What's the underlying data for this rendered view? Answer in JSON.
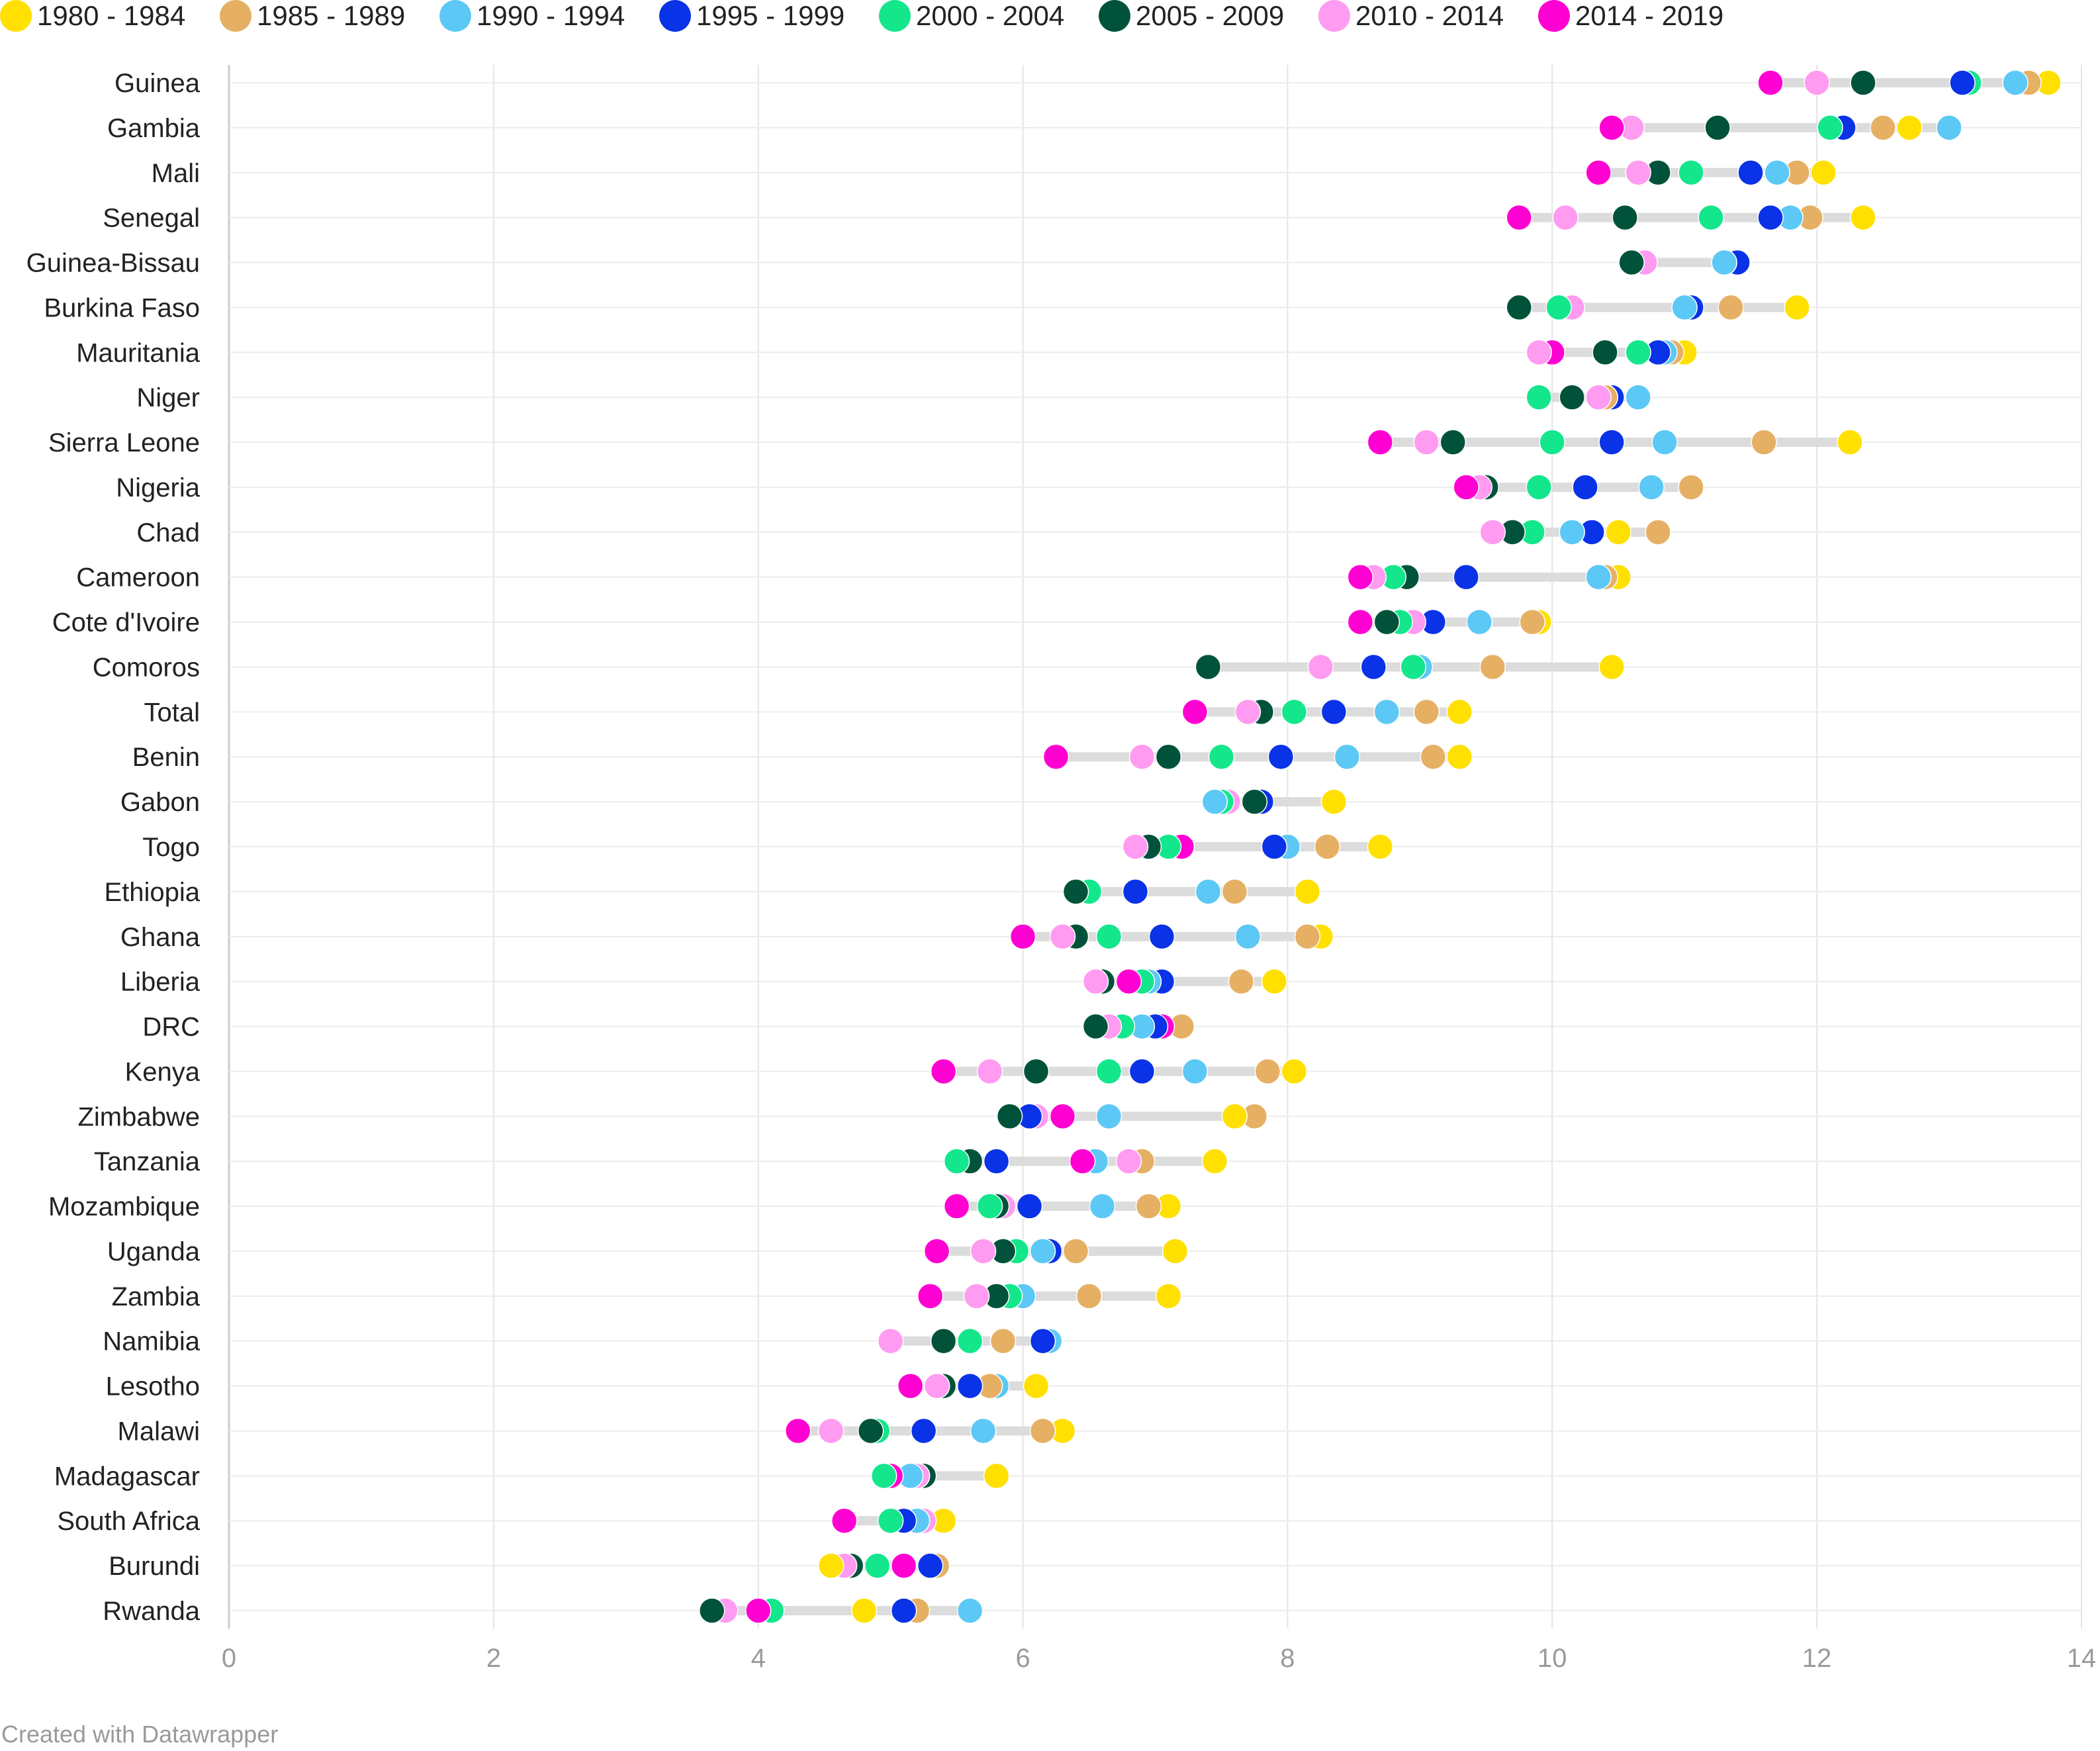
{
  "credit": "Created with Datawrapper",
  "chart_data": {
    "type": "scatter",
    "subtype": "dot-range",
    "title": "",
    "xlabel": "",
    "ylabel": "",
    "xlim": [
      0,
      14
    ],
    "xticks": [
      0,
      2,
      4,
      6,
      8,
      10,
      12,
      14
    ],
    "grid": true,
    "legend_position": "top-left",
    "series": [
      {
        "name": "1980 - 1984",
        "color": "#ffe000"
      },
      {
        "name": "1985 - 1989",
        "color": "#e6b064"
      },
      {
        "name": "1990 - 1994",
        "color": "#5cc8f5"
      },
      {
        "name": "1995 - 1999",
        "color": "#0a32e6"
      },
      {
        "name": "2000 - 2004",
        "color": "#14e68c"
      },
      {
        "name": "2005 - 2009",
        "color": "#00533a"
      },
      {
        "name": "2010 - 2014",
        "color": "#ff9bf0"
      },
      {
        "name": "2014 - 2019",
        "color": "#ff00d2"
      }
    ],
    "categories": [
      "Guinea",
      "Gambia",
      "Mali",
      "Senegal",
      "Guinea-Bissau",
      "Burkina Faso",
      "Mauritania",
      "Niger",
      "Sierra Leone",
      "Nigeria",
      "Chad",
      "Cameroon",
      "Cote d'Ivoire",
      "Comoros",
      "Total",
      "Benin",
      "Gabon",
      "Togo",
      "Ethiopia",
      "Ghana",
      "Liberia",
      "DRC",
      "Kenya",
      "Zimbabwe",
      "Tanzania",
      "Mozambique",
      "Uganda",
      "Zambia",
      "Namibia",
      "Lesotho",
      "Malawi",
      "Madagascar",
      "South Africa",
      "Burundi",
      "Rwanda"
    ],
    "values": [
      [
        13.75,
        13.6,
        13.5,
        13.1,
        13.15,
        12.35,
        12.0,
        11.65
      ],
      [
        12.7,
        12.5,
        13.0,
        12.2,
        12.1,
        11.25,
        10.6,
        10.45
      ],
      [
        12.05,
        11.85,
        11.7,
        11.5,
        11.05,
        10.8,
        10.65,
        10.35
      ],
      [
        12.35,
        11.95,
        11.8,
        11.65,
        11.2,
        10.55,
        10.1,
        9.75
      ],
      [
        11.3,
        11.3,
        11.3,
        11.4,
        10.6,
        10.6,
        10.7,
        null
      ],
      [
        11.85,
        11.35,
        11.0,
        11.05,
        10.05,
        9.75,
        10.15,
        null
      ],
      [
        11.0,
        10.9,
        10.85,
        10.8,
        10.65,
        10.4,
        9.9,
        10.0
      ],
      [
        10.4,
        10.4,
        10.65,
        10.45,
        9.9,
        10.15,
        10.35,
        null
      ],
      [
        12.25,
        11.6,
        10.85,
        10.45,
        10.0,
        9.25,
        9.05,
        8.7
      ],
      [
        11.05,
        11.05,
        10.75,
        10.25,
        9.9,
        9.5,
        9.45,
        9.35
      ],
      [
        10.5,
        10.8,
        10.15,
        10.3,
        9.85,
        9.7,
        9.55,
        null
      ],
      [
        10.5,
        10.4,
        10.35,
        9.35,
        8.8,
        8.9,
        8.65,
        8.55
      ],
      [
        9.9,
        9.85,
        9.45,
        9.1,
        8.85,
        8.75,
        8.95,
        8.55
      ],
      [
        10.45,
        9.55,
        9.0,
        8.65,
        8.95,
        7.4,
        8.25,
        null
      ],
      [
        9.3,
        9.05,
        8.75,
        8.35,
        8.05,
        7.8,
        7.7,
        7.3
      ],
      [
        9.3,
        9.1,
        8.45,
        7.95,
        7.5,
        7.1,
        6.9,
        6.25
      ],
      [
        8.35,
        null,
        7.45,
        7.8,
        7.5,
        7.75,
        7.55,
        null
      ],
      [
        8.7,
        8.3,
        8.0,
        7.9,
        7.1,
        6.95,
        6.85,
        7.2
      ],
      [
        8.15,
        7.6,
        7.4,
        6.85,
        6.5,
        6.4,
        null,
        null
      ],
      [
        8.25,
        8.15,
        7.7,
        7.05,
        6.65,
        6.4,
        6.3,
        6.0
      ],
      [
        7.9,
        7.65,
        6.95,
        7.05,
        6.9,
        6.6,
        6.55,
        6.8
      ],
      [
        7.2,
        7.2,
        6.9,
        7.0,
        6.75,
        6.55,
        6.65,
        7.05
      ],
      [
        8.05,
        7.85,
        7.3,
        6.9,
        6.65,
        6.1,
        5.75,
        5.4
      ],
      [
        7.6,
        7.75,
        6.65,
        6.05,
        null,
        5.9,
        6.1,
        6.3
      ],
      [
        7.45,
        6.9,
        6.55,
        5.8,
        5.5,
        5.6,
        6.8,
        6.45
      ],
      [
        7.1,
        6.95,
        6.6,
        6.05,
        5.75,
        5.8,
        5.85,
        5.5
      ],
      [
        7.15,
        6.4,
        6.15,
        6.2,
        5.95,
        5.85,
        5.7,
        5.35
      ],
      [
        7.1,
        6.5,
        6.0,
        5.8,
        5.9,
        5.8,
        5.65,
        5.3
      ],
      [
        5.85,
        5.85,
        6.2,
        6.15,
        5.6,
        5.4,
        5.0,
        null
      ],
      [
        6.1,
        5.75,
        5.8,
        5.6,
        5.35,
        5.4,
        5.35,
        5.15
      ],
      [
        6.3,
        6.15,
        5.7,
        5.25,
        4.9,
        4.85,
        4.55,
        4.3
      ],
      [
        5.8,
        null,
        5.15,
        5.2,
        4.95,
        5.25,
        5.2,
        5.0
      ],
      [
        5.4,
        5.2,
        5.2,
        5.1,
        5.0,
        null,
        5.25,
        4.65
      ],
      [
        4.55,
        5.35,
        null,
        5.3,
        4.9,
        4.7,
        4.65,
        5.1
      ],
      [
        4.8,
        5.2,
        5.6,
        5.1,
        4.1,
        3.65,
        3.75,
        4.0
      ]
    ]
  }
}
